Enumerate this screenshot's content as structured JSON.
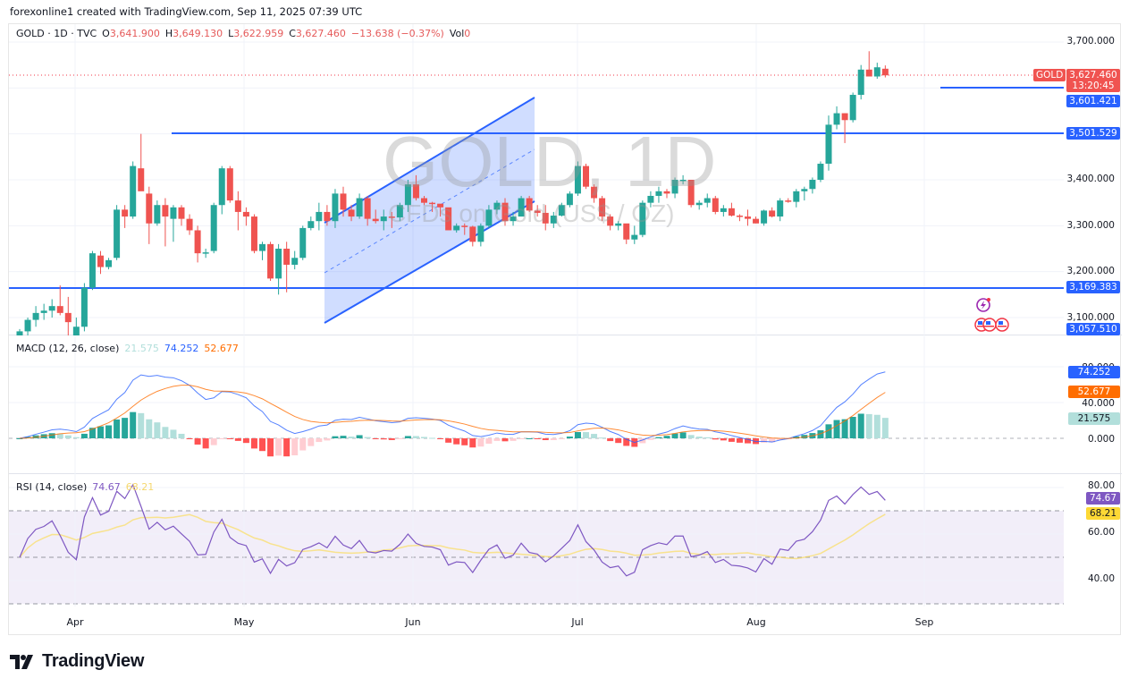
{
  "header": {
    "credit": "forexonline1 created with TradingView.com, Sep 11, 2025 07:39 UTC"
  },
  "legend": {
    "symbol": "GOLD · 1D · TVC",
    "open_label": "O",
    "open": "3,641.900",
    "high_label": "H",
    "high": "3,649.130",
    "low_label": "L",
    "low": "3,622.959",
    "close_label": "C",
    "close": "3,627.460",
    "change": "−13.638 (−0.37%)",
    "vol_label": "Vol",
    "vol": "0"
  },
  "watermark": {
    "title": "GOLD, 1D",
    "subtitle": "CFDs on Gold (US$ / OZ)"
  },
  "price_axis": {
    "ticks": [
      "3,700.000",
      "3,400.000",
      "3,300.000",
      "3,200.000",
      "3,100.000"
    ],
    "last_price_tag": {
      "symbol": "GOLD",
      "price": "3,627.460",
      "countdown": "13:20:45"
    },
    "line_tags": [
      "3,601.421",
      "3,501.529",
      "3,169.383",
      "3,057.510"
    ]
  },
  "macd": {
    "title": "MACD (12, 26, close)",
    "hist_value": "21.575",
    "macd_value": "74.252",
    "signal_value": "52.677",
    "ticks": [
      "80.000",
      "40.000",
      "0.000"
    ],
    "tags": {
      "macd": "74.252",
      "signal": "52.677",
      "hist": "21.575"
    }
  },
  "rsi": {
    "title": "RSI (14, close)",
    "rsi_value": "74.67",
    "ma_value": "68.21",
    "ticks": [
      "80.00",
      "60.00",
      "40.00"
    ],
    "tags": {
      "rsi": "74.67",
      "ma": "68.21"
    }
  },
  "time_axis": {
    "labels": [
      "Apr",
      "May",
      "Jun",
      "Jul",
      "Aug",
      "Sep"
    ]
  },
  "brand": {
    "name": "TradingView"
  },
  "colors": {
    "up": "#26a69a",
    "down": "#ef5350",
    "line": "#2962ff",
    "macd": "#2962ff",
    "signal": "#ff6d00",
    "rsi": "#7e57c2",
    "rsi_ma": "#fdd835",
    "channel_fill": "#2962ff"
  },
  "chart_data": [
    {
      "type": "candlestick",
      "title": "GOLD, 1D — CFDs on Gold (US$ / OZ)",
      "ylim": [
        3050,
        3720
      ],
      "x_labels": [
        "Apr",
        "May",
        "Jun",
        "Jul",
        "Aug",
        "Sep"
      ],
      "horizontal_levels": [
        3601.421,
        3501.529,
        3169.383
      ],
      "last_price": 3627.46,
      "ohlc_approx": [
        [
          3045,
          3075,
          3040,
          3070
        ],
        [
          3070,
          3100,
          3060,
          3095
        ],
        [
          3095,
          3125,
          3080,
          3110
        ],
        [
          3110,
          3130,
          3095,
          3115
        ],
        [
          3115,
          3140,
          3100,
          3125
        ],
        [
          3125,
          3170,
          3105,
          3110
        ],
        [
          3110,
          3145,
          3060,
          3090
        ],
        [
          3060,
          3100,
          3030,
          3080
        ],
        [
          3080,
          3175,
          3070,
          3165
        ],
        [
          3165,
          3245,
          3160,
          3240
        ],
        [
          3235,
          3245,
          3195,
          3210
        ],
        [
          3210,
          3230,
          3205,
          3225
        ],
        [
          3230,
          3345,
          3225,
          3335
        ],
        [
          3335,
          3345,
          3295,
          3320
        ],
        [
          3320,
          3440,
          3315,
          3430
        ],
        [
          3425,
          3500,
          3395,
          3375
        ],
        [
          3370,
          3385,
          3260,
          3305
        ],
        [
          3305,
          3355,
          3300,
          3345
        ],
        [
          3345,
          3360,
          3255,
          3320
        ],
        [
          3315,
          3345,
          3265,
          3340
        ],
        [
          3340,
          3345,
          3300,
          3315
        ],
        [
          3315,
          3325,
          3280,
          3290
        ],
        [
          3290,
          3300,
          3220,
          3240
        ],
        [
          3240,
          3250,
          3230,
          3242
        ],
        [
          3245,
          3350,
          3240,
          3345
        ],
        [
          3345,
          3430,
          3325,
          3425
        ],
        [
          3425,
          3430,
          3350,
          3355
        ],
        [
          3355,
          3375,
          3290,
          3330
        ],
        [
          3330,
          3340,
          3300,
          3320
        ],
        [
          3320,
          3325,
          3240,
          3245
        ],
        [
          3245,
          3265,
          3225,
          3260
        ],
        [
          3260,
          3265,
          3180,
          3185
        ],
        [
          3185,
          3260,
          3150,
          3250
        ],
        [
          3250,
          3265,
          3155,
          3215
        ],
        [
          3215,
          3245,
          3205,
          3230
        ],
        [
          3230,
          3300,
          3225,
          3295
        ],
        [
          3295,
          3320,
          3290,
          3310
        ],
        [
          3310,
          3350,
          3290,
          3330
        ],
        [
          3330,
          3345,
          3300,
          3310
        ],
        [
          3310,
          3380,
          3295,
          3370
        ],
        [
          3370,
          3385,
          3320,
          3335
        ],
        [
          3335,
          3345,
          3310,
          3320
        ],
        [
          3320,
          3370,
          3315,
          3360
        ],
        [
          3360,
          3365,
          3300,
          3315
        ],
        [
          3315,
          3335,
          3305,
          3310
        ],
        [
          3310,
          3335,
          3290,
          3320
        ],
        [
          3320,
          3330,
          3295,
          3318
        ],
        [
          3318,
          3350,
          3310,
          3345
        ],
        [
          3345,
          3400,
          3330,
          3390
        ],
        [
          3390,
          3410,
          3355,
          3360
        ],
        [
          3360,
          3365,
          3345,
          3350
        ],
        [
          3350,
          3352,
          3330,
          3348
        ],
        [
          3348,
          3345,
          3320,
          3340
        ],
        [
          3340,
          3335,
          3300,
          3290
        ],
        [
          3290,
          3305,
          3285,
          3300
        ],
        [
          3300,
          3305,
          3280,
          3298
        ],
        [
          3298,
          3300,
          3255,
          3265
        ],
        [
          3265,
          3305,
          3255,
          3300
        ],
        [
          3300,
          3345,
          3295,
          3335
        ],
        [
          3335,
          3355,
          3325,
          3350
        ],
        [
          3350,
          3360,
          3300,
          3310
        ],
        [
          3310,
          3330,
          3300,
          3320
        ],
        [
          3320,
          3365,
          3320,
          3360
        ],
        [
          3360,
          3365,
          3330,
          3333
        ],
        [
          3333,
          3345,
          3320,
          3328
        ],
        [
          3328,
          3345,
          3290,
          3305
        ],
        [
          3305,
          3330,
          3295,
          3322
        ],
        [
          3322,
          3350,
          3320,
          3345
        ],
        [
          3345,
          3375,
          3340,
          3370
        ],
        [
          3370,
          3440,
          3365,
          3430
        ],
        [
          3430,
          3435,
          3380,
          3385
        ],
        [
          3385,
          3390,
          3350,
          3360
        ],
        [
          3360,
          3365,
          3310,
          3320
        ],
        [
          3320,
          3325,
          3290,
          3300
        ],
        [
          3300,
          3310,
          3290,
          3305
        ],
        [
          3305,
          3300,
          3260,
          3270
        ],
        [
          3270,
          3300,
          3260,
          3280
        ],
        [
          3280,
          3355,
          3275,
          3350
        ],
        [
          3350,
          3375,
          3340,
          3365
        ],
        [
          3365,
          3385,
          3350,
          3375
        ],
        [
          3375,
          3380,
          3360,
          3370
        ],
        [
          3370,
          3405,
          3360,
          3400
        ],
        [
          3400,
          3410,
          3390,
          3400
        ],
        [
          3400,
          3400,
          3340,
          3345
        ],
        [
          3345,
          3355,
          3335,
          3350
        ],
        [
          3350,
          3370,
          3340,
          3360
        ],
        [
          3360,
          3365,
          3325,
          3330
        ],
        [
          3330,
          3345,
          3320,
          3338
        ],
        [
          3338,
          3350,
          3320,
          3322
        ],
        [
          3322,
          3325,
          3310,
          3320
        ],
        [
          3320,
          3335,
          3300,
          3315
        ],
        [
          3315,
          3320,
          3305,
          3305
        ],
        [
          3305,
          3335,
          3300,
          3333
        ],
        [
          3333,
          3340,
          3318,
          3320
        ],
        [
          3320,
          3360,
          3310,
          3355
        ],
        [
          3355,
          3360,
          3350,
          3352
        ],
        [
          3352,
          3380,
          3340,
          3375
        ],
        [
          3375,
          3385,
          3355,
          3380
        ],
        [
          3380,
          3405,
          3370,
          3400
        ],
        [
          3400,
          3440,
          3395,
          3435
        ],
        [
          3435,
          3540,
          3420,
          3520
        ],
        [
          3520,
          3560,
          3510,
          3545
        ],
        [
          3545,
          3545,
          3480,
          3530
        ],
        [
          3530,
          3590,
          3525,
          3585
        ],
        [
          3585,
          3650,
          3575,
          3640
        ],
        [
          3640,
          3680,
          3630,
          3625
        ],
        [
          3625,
          3655,
          3620,
          3645
        ],
        [
          3641.9,
          3649.13,
          3622.959,
          3627.46
        ]
      ]
    },
    {
      "type": "line",
      "title": "MACD (12, 26, close)",
      "ylim": [
        -50,
        110
      ],
      "series": [
        {
          "name": "MACD",
          "last": 74.252
        },
        {
          "name": "Signal",
          "last": 52.677
        },
        {
          "name": "Histogram",
          "last": 21.575
        }
      ],
      "ticks": [
        0,
        40,
        80
      ]
    },
    {
      "type": "line",
      "title": "RSI (14, close)",
      "ylim": [
        25,
        85
      ],
      "series": [
        {
          "name": "RSI",
          "last": 74.67
        },
        {
          "name": "RSI-based MA",
          "last": 68.21
        }
      ],
      "bands": [
        70,
        50,
        30
      ],
      "ticks": [
        40,
        60,
        80
      ]
    }
  ]
}
